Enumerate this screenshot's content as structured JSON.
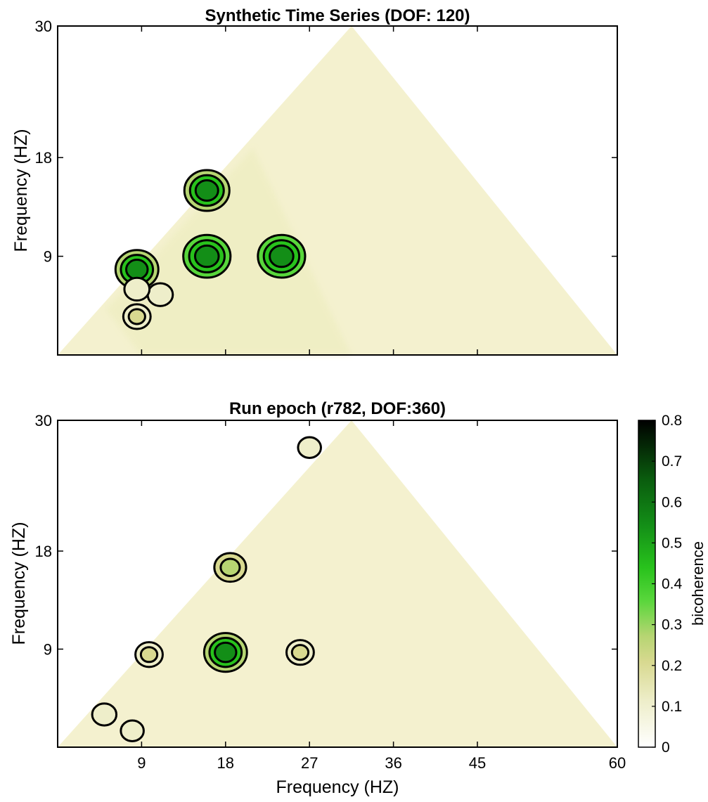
{
  "chart_data": [
    {
      "type": "heatmap",
      "title": "Synthetic Time Series (DOF: 120)",
      "ylabel": "Frequency (HZ)",
      "xlabel": "",
      "xlim": [
        0,
        60
      ],
      "ylim": [
        0,
        30
      ],
      "yticks": [
        9,
        18,
        30
      ],
      "xticks": [
        9,
        18,
        27,
        36,
        45,
        60
      ],
      "show_x_tick_labels": false,
      "domain": "triangle f2 <= f1, f1 + f2 <= 60",
      "peaks": [
        {
          "x": 16,
          "y": 15,
          "value": 0.75
        },
        {
          "x": 16,
          "y": 9,
          "value": 0.8
        },
        {
          "x": 24,
          "y": 9,
          "value": 0.8
        },
        {
          "x": 8.5,
          "y": 7.8,
          "value": 0.7
        },
        {
          "x": 11,
          "y": 5.5,
          "value": 0.3
        },
        {
          "x": 8.5,
          "y": 3.5,
          "value": 0.35
        },
        {
          "x": 8.5,
          "y": 6,
          "value": 0.3
        }
      ]
    },
    {
      "type": "heatmap",
      "title": "Run epoch (r782, DOF:360)",
      "ylabel": "Frequency (HZ)",
      "xlabel": "Frequency (HZ)",
      "xlim": [
        0,
        60
      ],
      "ylim": [
        0,
        30
      ],
      "yticks": [
        9,
        18,
        30
      ],
      "xticks": [
        9,
        18,
        27,
        36,
        45,
        60
      ],
      "domain": "triangle f2 <= f1, f1 + f2 <= 60",
      "peaks": [
        {
          "x": 18,
          "y": 8.7,
          "value": 0.7
        },
        {
          "x": 18.5,
          "y": 16.5,
          "value": 0.45
        },
        {
          "x": 9.8,
          "y": 8.5,
          "value": 0.35
        },
        {
          "x": 26,
          "y": 8.7,
          "value": 0.35
        },
        {
          "x": 5,
          "y": 3,
          "value": 0.28
        },
        {
          "x": 8,
          "y": 1.5,
          "value": 0.25
        },
        {
          "x": 27,
          "y": 27.5,
          "value": 0.25
        }
      ]
    }
  ],
  "colorbar": {
    "label": "bicoherence",
    "range": [
      0,
      0.8
    ],
    "ticks": [
      "0",
      "0.1",
      "0.2",
      "0.3",
      "0.4",
      "0.5",
      "0.6",
      "0.7",
      "0.8"
    ],
    "colors": [
      "#ffffff",
      "#e3e3a0",
      "#cfd88a",
      "#73d44e",
      "#2ecc1f",
      "#10941a",
      "#075e10",
      "#000000"
    ]
  }
}
